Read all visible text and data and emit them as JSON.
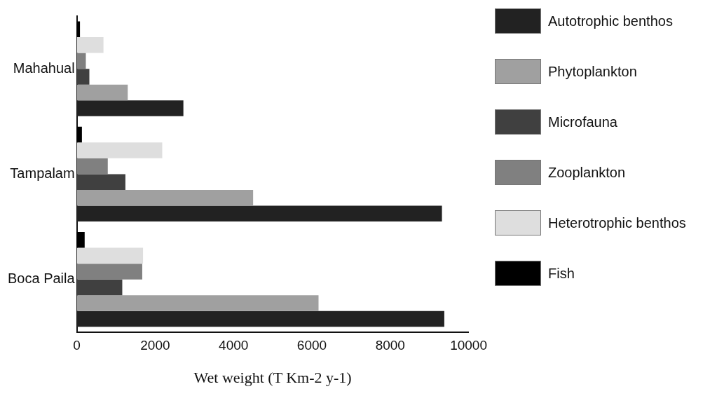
{
  "chart_data": {
    "type": "bar",
    "orientation": "horizontal",
    "xlabel": "Wet weight (T Km-2 y-1)",
    "categories": [
      "Mahahual",
      "Tampalam",
      "Boca Paila"
    ],
    "xlim": [
      0,
      10000
    ],
    "xticks": [
      0,
      2000,
      4000,
      6000,
      8000,
      10000
    ],
    "grid": false,
    "legend": "right",
    "series": [
      {
        "name": "Autotrophic benthos",
        "color": "#222222",
        "values": [
          2720,
          9320,
          9380
        ]
      },
      {
        "name": "Phytoplankton",
        "color": "#a0a0a0",
        "values": [
          1300,
          4500,
          6170
        ]
      },
      {
        "name": "Microfauna",
        "color": "#404040",
        "values": [
          320,
          1240,
          1160
        ]
      },
      {
        "name": "Zooplankton",
        "color": "#808080",
        "values": [
          230,
          790,
          1670
        ]
      },
      {
        "name": "Heterotrophic benthos",
        "color": "#dedede",
        "values": [
          680,
          2180,
          1690
        ]
      },
      {
        "name": "Fish",
        "color": "#000000",
        "values": [
          80,
          130,
          200
        ]
      }
    ]
  }
}
